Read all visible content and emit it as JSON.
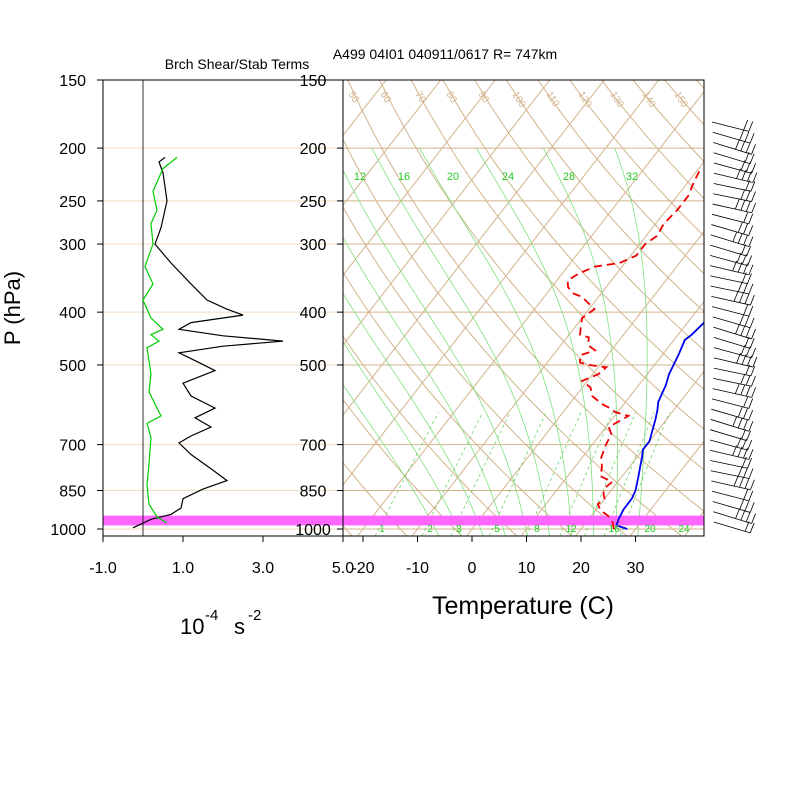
{
  "chart_data": [
    {
      "type": "line",
      "title": "Brch Shear/Stab Terms",
      "xlabel": "10",
      "xlabel_exp1": "-4",
      "xlabel_unit": "s",
      "xlabel_exp2": "-2",
      "ylabel": "P (hPa)",
      "x_tick_labels": [
        "-1.0",
        "1.0",
        "3.0",
        "5.0"
      ],
      "x_ticks": [
        -1,
        1,
        3,
        5
      ],
      "xlim": [
        -1,
        5
      ],
      "y_tick_labels": [
        "150",
        "200",
        "250",
        "300",
        "400",
        "500",
        "700",
        "850",
        "1000"
      ],
      "y_ticks": [
        150,
        200,
        250,
        300,
        400,
        500,
        700,
        850,
        1000
      ],
      "ylim": [
        1020,
        150
      ],
      "yscale": "log",
      "series": [
        {
          "color": "#000000",
          "points": [
            [
              0.55,
              208
            ],
            [
              0.4,
              212
            ],
            [
              0.5,
              222
            ],
            [
              0.6,
              250
            ],
            [
              0.45,
              280
            ],
            [
              0.3,
              300
            ],
            [
              0.7,
              325
            ],
            [
              1.2,
              355
            ],
            [
              1.6,
              380
            ],
            [
              2.1,
              395
            ],
            [
              2.5,
              405
            ],
            [
              1.2,
              418
            ],
            [
              0.9,
              430
            ],
            [
              2.0,
              442
            ],
            [
              3.5,
              452
            ],
            [
              2.0,
              462
            ],
            [
              0.9,
              475
            ],
            [
              1.4,
              495
            ],
            [
              1.8,
              512
            ],
            [
              1.0,
              540
            ],
            [
              1.2,
              570
            ],
            [
              1.8,
              600
            ],
            [
              1.3,
              625
            ],
            [
              1.7,
              650
            ],
            [
              1.2,
              675
            ],
            [
              0.9,
              695
            ],
            [
              1.2,
              730
            ],
            [
              1.7,
              775
            ],
            [
              2.1,
              815
            ],
            [
              1.5,
              845
            ],
            [
              1.0,
              880
            ],
            [
              0.95,
              915
            ],
            [
              0.7,
              940
            ],
            [
              0.2,
              960
            ],
            [
              -0.25,
              995
            ]
          ]
        },
        {
          "color": "#00cc00",
          "points": [
            [
              0.85,
              208
            ],
            [
              0.5,
              218
            ],
            [
              0.25,
              240
            ],
            [
              0.35,
              260
            ],
            [
              0.2,
              275
            ],
            [
              0.25,
              300
            ],
            [
              0.05,
              330
            ],
            [
              0.25,
              355
            ],
            [
              0.0,
              380
            ],
            [
              0.2,
              410
            ],
            [
              0.5,
              430
            ],
            [
              0.2,
              440
            ],
            [
              0.4,
              452
            ],
            [
              0.1,
              465
            ],
            [
              0.2,
              520
            ],
            [
              0.15,
              560
            ],
            [
              0.3,
              590
            ],
            [
              0.45,
              620
            ],
            [
              0.1,
              640
            ],
            [
              0.2,
              680
            ],
            [
              0.15,
              760
            ],
            [
              0.1,
              830
            ],
            [
              0.15,
              900
            ],
            [
              0.35,
              950
            ],
            [
              0.6,
              975
            ]
          ]
        }
      ],
      "highlight_band_hpa": [
        945,
        985
      ],
      "highlight_color": "#ff66ff"
    },
    {
      "type": "line",
      "title": "A499 04I01 040911/0617 R= 747km",
      "xlabel": "Temperature (C)",
      "x_tick_labels": [
        "-20",
        "-10",
        "0",
        "10",
        "20",
        "30"
      ],
      "x_ticks": [
        -20,
        -10,
        0,
        10,
        20,
        30
      ],
      "xlim": [
        -23,
        43
      ],
      "y_tick_labels": [
        "150",
        "200",
        "250",
        "300",
        "400",
        "500",
        "700",
        "850",
        "1000"
      ],
      "y_ticks": [
        150,
        200,
        250,
        300,
        400,
        500,
        700,
        850,
        1000
      ],
      "ylim": [
        1020,
        150
      ],
      "yscale": "log",
      "skew": "skew-T",
      "dry_adiabat_labels": [
        "50",
        "60",
        "70",
        "80",
        "90",
        "100",
        "110",
        "120",
        "130",
        "140",
        "150"
      ],
      "wet_adiabat_labels": [
        "12",
        "16",
        "20",
        "24",
        "28",
        "32"
      ],
      "mixing_ratio_labels": [
        "1",
        "2",
        "3",
        "5",
        "8",
        "12",
        "16",
        "20",
        "24"
      ],
      "series": [
        {
          "name": "",
          "color": "#0000ee",
          "style": "solid",
          "points": [
            [
              28.5,
              1000
            ],
            [
              26,
              985
            ],
            [
              25.5,
              960
            ],
            [
              25,
              920
            ],
            [
              25,
              880
            ],
            [
              24.5,
              850
            ],
            [
              23,
              800
            ],
            [
              22,
              770
            ],
            [
              21,
              740
            ],
            [
              20,
              715
            ],
            [
              20,
              690
            ],
            [
              19,
              660
            ],
            [
              18,
              630
            ],
            [
              17,
              605
            ],
            [
              16,
              585
            ],
            [
              15.5,
              565
            ],
            [
              15,
              545
            ],
            [
              14,
              520
            ],
            [
              13.5,
              500
            ],
            [
              13,
              480
            ],
            [
              12.5,
              465
            ],
            [
              12,
              450
            ],
            [
              12.5,
              440
            ],
            [
              13,
              420
            ],
            [
              13,
              405
            ],
            [
              12.5,
              390
            ],
            [
              12,
              375
            ],
            [
              11,
              355
            ],
            [
              10,
              335
            ],
            [
              9,
              320
            ],
            [
              8,
              305
            ],
            [
              7,
              290
            ],
            [
              6,
              278
            ],
            [
              5,
              265
            ],
            [
              4,
              253
            ],
            [
              3,
              243
            ],
            [
              1.5,
              228
            ],
            [
              0,
              215
            ],
            [
              -0.5,
              203
            ]
          ]
        },
        {
          "name": "",
          "color": "#ee0000",
          "style": "dashed",
          "points": [
            [
              26,
              1000
            ],
            [
              25,
              975
            ],
            [
              24,
              960
            ],
            [
              23,
              945
            ],
            [
              21,
              925
            ],
            [
              19.5,
              900
            ],
            [
              20,
              880
            ],
            [
              19,
              860
            ],
            [
              18.5,
              840
            ],
            [
              19,
              820
            ],
            [
              16,
              800
            ],
            [
              15,
              770
            ],
            [
              13.5,
              740
            ],
            [
              13,
              720
            ],
            [
              12.5,
              700
            ],
            [
              12,
              670
            ],
            [
              10.5,
              650
            ],
            [
              12.5,
              620
            ],
            [
              9.5,
              610
            ],
            [
              8,
              600
            ],
            [
              6,
              590
            ],
            [
              3,
              570
            ],
            [
              1.5,
              550
            ],
            [
              -1,
              535
            ],
            [
              1,
              520
            ],
            [
              1.5,
              505
            ],
            [
              -2,
              500
            ],
            [
              -4,
              495
            ],
            [
              -5,
              480
            ],
            [
              -3,
              470
            ],
            [
              -5,
              460
            ],
            [
              -6,
              445
            ],
            [
              -8,
              440
            ],
            [
              -9,
              425
            ],
            [
              -10,
              410
            ],
            [
              -9,
              395
            ],
            [
              -11,
              385
            ],
            [
              -13,
              375
            ],
            [
              -15,
              370
            ],
            [
              -17,
              360
            ],
            [
              -18,
              350
            ],
            [
              -17,
              340
            ],
            [
              -15,
              330
            ],
            [
              -11,
              325
            ],
            [
              -9,
              315
            ],
            [
              -9,
              300
            ],
            [
              -8,
              290
            ],
            [
              -8.5,
              275
            ],
            [
              -8,
              260
            ],
            [
              -8,
              245
            ],
            [
              -9,
              230
            ],
            [
              -9.5,
              220
            ]
          ]
        }
      ],
      "highlight_band_hpa": [
        945,
        985
      ],
      "highlight_color": "#ff66ff"
    }
  ],
  "wind_barbs": {
    "color": "#000000",
    "count": 40
  }
}
